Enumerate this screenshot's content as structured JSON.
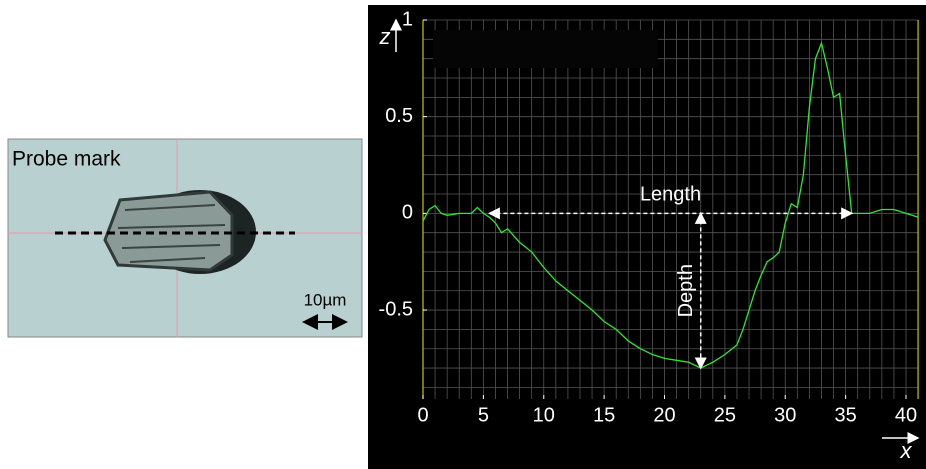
{
  "image": {
    "label": "Probe mark",
    "scale_bar": "10µm"
  },
  "chart_data": {
    "type": "line",
    "x_label": "x",
    "y_label": "z",
    "x": [
      0,
      0.5,
      1,
      1.5,
      2,
      3,
      4,
      4.5,
      5,
      5.5,
      6,
      6.5,
      7,
      8,
      9,
      10,
      11,
      12,
      13,
      14,
      15,
      16,
      17,
      18,
      19,
      20,
      21,
      22,
      23,
      24,
      25,
      26,
      26.5,
      27,
      27.5,
      28,
      28.5,
      29,
      29.5,
      30,
      30.5,
      31,
      31.5,
      32,
      32.5,
      33,
      33.5,
      34,
      34.5,
      35,
      35.5,
      36,
      37,
      38,
      39,
      40,
      40.5,
      41
    ],
    "series": [
      {
        "color": "#2ee82e",
        "values": [
          -0.04,
          0.02,
          0.04,
          0.0,
          -0.01,
          0.0,
          0.0,
          0.03,
          0.0,
          -0.02,
          -0.05,
          -0.1,
          -0.08,
          -0.15,
          -0.2,
          -0.28,
          -0.35,
          -0.4,
          -0.45,
          -0.5,
          -0.56,
          -0.6,
          -0.66,
          -0.7,
          -0.73,
          -0.75,
          -0.76,
          -0.77,
          -0.8,
          -0.77,
          -0.73,
          -0.68,
          -0.6,
          -0.5,
          -0.4,
          -0.32,
          -0.25,
          -0.23,
          -0.2,
          -0.05,
          0.05,
          0.03,
          0.2,
          0.55,
          0.8,
          0.88,
          0.75,
          0.6,
          0.62,
          0.3,
          0.0,
          0.0,
          0.0,
          0.02,
          0.02,
          0.0,
          -0.01,
          -0.02
        ]
      }
    ],
    "xlim": [
      0,
      41
    ],
    "ylim": [
      -0.96,
      1
    ],
    "xticks": [
      0,
      5,
      10,
      15,
      20,
      25,
      30,
      35,
      40
    ],
    "yticks": [
      -0.5,
      0,
      0.5,
      1
    ],
    "grid": true,
    "x_grid_step": 1,
    "y_grid_step": 0.1,
    "annotations": [
      {
        "text": "Length",
        "x": [
          5.5,
          35.5
        ],
        "y": 0
      },
      {
        "text": "Depth",
        "x": 23,
        "y": [
          0,
          -0.8
        ]
      }
    ]
  }
}
